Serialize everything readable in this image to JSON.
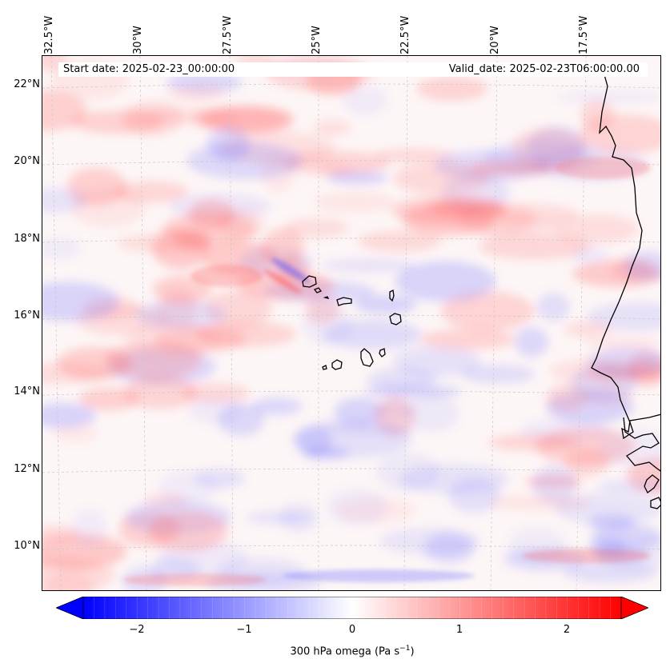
{
  "map": {
    "start_date": "Start date: 2025-02-23_00:00:00",
    "valid_date": "Valid_date: 2025-02-23T06:00:00.00",
    "lon_labels": [
      "32.5°W",
      "30°W",
      "27.5°W",
      "25°W",
      "22.5°W",
      "20°W",
      "17.5°W"
    ],
    "lat_labels": [
      "22°N",
      "20°N",
      "18°N",
      "16°N",
      "14°N",
      "12°N",
      "10°N"
    ],
    "colors": {
      "positive": "#ff0000",
      "negative": "#0000ff",
      "neutral": "#ffffff",
      "coastline": "#000000",
      "grid": "#bbbbbb"
    }
  },
  "colorbar": {
    "label_prefix": "300 hPa omega (Pa s",
    "label_sup": "−1",
    "label_suffix": ")",
    "ticks": [
      "−2",
      "−1",
      "0",
      "1",
      "2"
    ],
    "tick_values": [
      -2,
      -1,
      0,
      1,
      2
    ],
    "vmin": -2.5,
    "vmax": 2.5,
    "extend": "both"
  }
}
